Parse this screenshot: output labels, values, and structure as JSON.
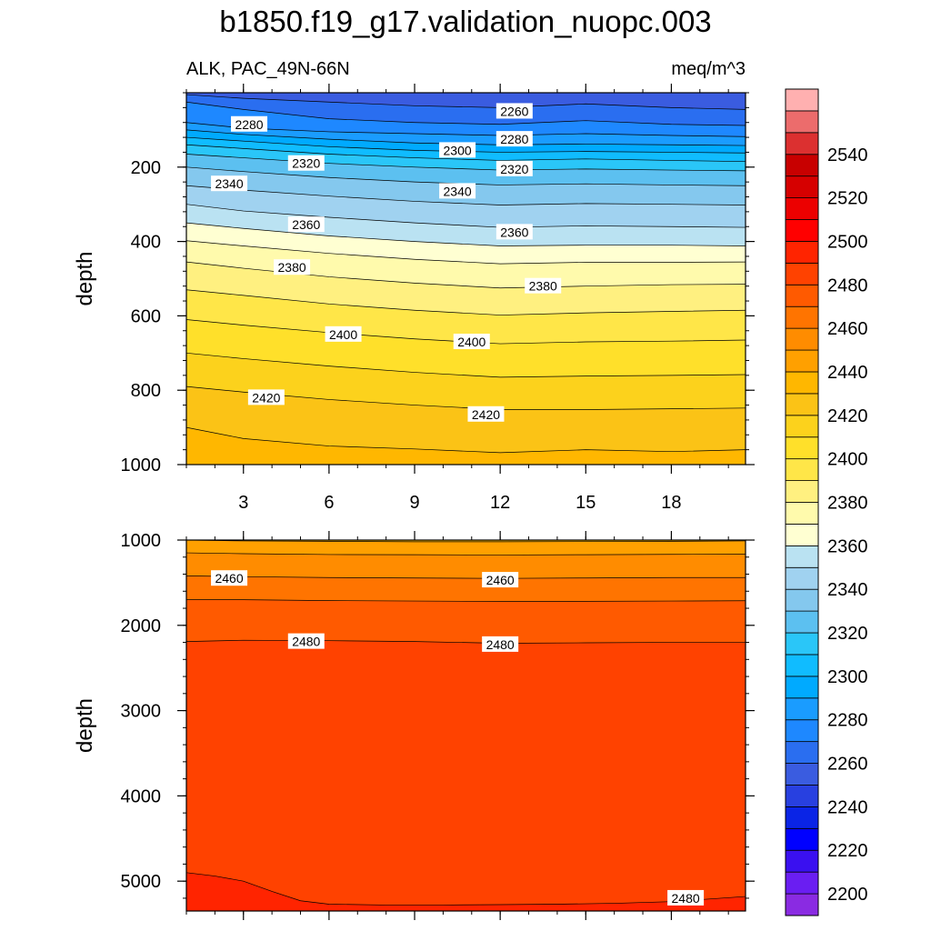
{
  "title": "b1850.f19_g17.validation_nuopc.003",
  "chart_data": {
    "type": "contour",
    "variable": "ALK, PAC_49N-66N",
    "units": "meq/m^3",
    "x": {
      "label": "",
      "range": [
        1,
        20.6
      ],
      "ticks": [
        3,
        6,
        9,
        12,
        15,
        18
      ]
    },
    "panels": [
      {
        "name": "upper",
        "ylabel": "depth",
        "yrange": [
          0,
          1000
        ],
        "yticks": [
          200,
          400,
          600,
          800,
          1000
        ],
        "xtick_labels_shown": true,
        "boundaries": [
          {
            "level": 2260,
            "x": [
              1,
              3,
              6,
              9,
              12,
              15,
              18,
              20.6
            ],
            "y": [
              5,
              15,
              25,
              35,
              40,
              30,
              40,
              45
            ]
          },
          {
            "level": 2270,
            "x": [
              1,
              3,
              6,
              9,
              12,
              15,
              18,
              20.6
            ],
            "y": [
              25,
              45,
              70,
              80,
              85,
              75,
              85,
              88
            ]
          },
          {
            "level": 2280,
            "x": [
              1,
              3,
              6,
              9,
              12,
              15,
              18,
              20.6
            ],
            "y": [
              80,
              95,
              105,
              110,
              115,
              110,
              115,
              118
            ]
          },
          {
            "level": 2290,
            "x": [
              1,
              3,
              6,
              9,
              12,
              15,
              18,
              20.6
            ],
            "y": [
              100,
              112,
              125,
              135,
              140,
              138,
              140,
              142
            ]
          },
          {
            "level": 2300,
            "x": [
              1,
              3,
              6,
              9,
              12,
              15,
              18,
              20.6
            ],
            "y": [
              120,
              130,
              145,
              155,
              160,
              158,
              160,
              162
            ]
          },
          {
            "level": 2310,
            "x": [
              1,
              3,
              6,
              9,
              12,
              15,
              18,
              20.6
            ],
            "y": [
              140,
              150,
              165,
              175,
              182,
              178,
              182,
              185
            ]
          },
          {
            "level": 2320,
            "x": [
              1,
              3,
              6,
              9,
              12,
              15,
              18,
              20.6
            ],
            "y": [
              165,
              175,
              190,
              200,
              208,
              205,
              208,
              210
            ]
          },
          {
            "level": 2330,
            "x": [
              1,
              3,
              6,
              9,
              12,
              15,
              18,
              20.6
            ],
            "y": [
              200,
              212,
              228,
              240,
              248,
              245,
              248,
              250
            ]
          },
          {
            "level": 2340,
            "x": [
              1,
              3,
              6,
              9,
              12,
              15,
              18,
              20.6
            ],
            "y": [
              250,
              262,
              278,
              292,
              302,
              298,
              300,
              302
            ]
          },
          {
            "level": 2350,
            "x": [
              1,
              3,
              6,
              9,
              12,
              15,
              18,
              20.6
            ],
            "y": [
              300,
              318,
              335,
              350,
              362,
              358,
              360,
              362
            ]
          },
          {
            "level": 2360,
            "x": [
              1,
              3,
              6,
              9,
              12,
              15,
              18,
              20.6
            ],
            "y": [
              350,
              365,
              385,
              400,
              412,
              410,
              410,
              412
            ]
          },
          {
            "level": 2370,
            "x": [
              1,
              3,
              6,
              9,
              12,
              15,
              18,
              20.6
            ],
            "y": [
              398,
              412,
              432,
              448,
              460,
              456,
              456,
              455
            ]
          },
          {
            "level": 2380,
            "x": [
              1,
              3,
              6,
              9,
              12,
              15,
              18,
              20.6
            ],
            "y": [
              455,
              472,
              495,
              512,
              525,
              520,
              516,
              515
            ]
          },
          {
            "level": 2390,
            "x": [
              1,
              3,
              6,
              9,
              12,
              15,
              18,
              20.6
            ],
            "y": [
              530,
              545,
              568,
              585,
              598,
              592,
              588,
              585
            ]
          },
          {
            "level": 2400,
            "x": [
              1,
              3,
              6,
              9,
              12,
              15,
              18,
              20.6
            ],
            "y": [
              610,
              625,
              645,
              662,
              675,
              670,
              668,
              665
            ]
          },
          {
            "level": 2410,
            "x": [
              1,
              3,
              6,
              9,
              12,
              15,
              18,
              20.6
            ],
            "y": [
              700,
              715,
              735,
              752,
              765,
              762,
              760,
              758
            ]
          },
          {
            "level": 2420,
            "x": [
              1,
              3,
              6,
              9,
              12,
              15,
              18,
              20.6
            ],
            "y": [
              790,
              805,
              825,
              840,
              852,
              852,
              850,
              848
            ]
          },
          {
            "level": 2430,
            "x": [
              1,
              3,
              6,
              9,
              12,
              15,
              18,
              20.6
            ],
            "y": [
              900,
              930,
              950,
              958,
              968,
              960,
              965,
              960
            ]
          }
        ],
        "line_labels": [
          {
            "text": "2260",
            "x": 12.5,
            "y": 50
          },
          {
            "text": "2280",
            "x": 3.2,
            "y": 85
          },
          {
            "text": "2280",
            "x": 12.5,
            "y": 125
          },
          {
            "text": "2300",
            "x": 10.5,
            "y": 155
          },
          {
            "text": "2320",
            "x": 5.2,
            "y": 190
          },
          {
            "text": "2320",
            "x": 12.5,
            "y": 205
          },
          {
            "text": "2340",
            "x": 2.5,
            "y": 245
          },
          {
            "text": "2340",
            "x": 10.5,
            "y": 265
          },
          {
            "text": "2360",
            "x": 5.2,
            "y": 355
          },
          {
            "text": "2360",
            "x": 12.5,
            "y": 375
          },
          {
            "text": "2380",
            "x": 4.7,
            "y": 470
          },
          {
            "text": "2380",
            "x": 13.5,
            "y": 520
          },
          {
            "text": "2400",
            "x": 6.5,
            "y": 650
          },
          {
            "text": "2400",
            "x": 11,
            "y": 670
          },
          {
            "text": "2420",
            "x": 3.8,
            "y": 820
          },
          {
            "text": "2420",
            "x": 11.5,
            "y": 865
          }
        ]
      },
      {
        "name": "lower",
        "ylabel": "depth",
        "yrange": [
          1000,
          5350
        ],
        "yticks": [
          1000,
          2000,
          3000,
          4000,
          5000
        ],
        "xtick_labels_shown": false,
        "boundaries": [
          {
            "level": 2440,
            "x": [
              1,
              3,
              6,
              9,
              12,
              15,
              18,
              20.6
            ],
            "y": [
              1000,
              1010,
              1015,
              1020,
              1020,
              1018,
              1015,
              1010
            ]
          },
          {
            "level": 2450,
            "x": [
              1,
              3,
              6,
              9,
              12,
              15,
              18,
              20.6
            ],
            "y": [
              1150,
              1160,
              1170,
              1172,
              1175,
              1172,
              1168,
              1165
            ]
          },
          {
            "level": 2460,
            "x": [
              1,
              3,
              6,
              9,
              12,
              15,
              18,
              20.6
            ],
            "y": [
              1420,
              1430,
              1440,
              1445,
              1450,
              1445,
              1440,
              1440
            ]
          },
          {
            "level": 2470,
            "x": [
              1,
              3,
              6,
              9,
              12,
              15,
              18,
              20.6
            ],
            "y": [
              1700,
              1700,
              1710,
              1715,
              1720,
              1718,
              1715,
              1712
            ]
          },
          {
            "level": 2480,
            "x": [
              1,
              3,
              6,
              9,
              12,
              15,
              18,
              20.6
            ],
            "y": [
              2190,
              2175,
              2180,
              2190,
              2210,
              2205,
              2200,
              2200
            ]
          },
          {
            "level": 2490,
            "x": [
              1,
              2,
              3,
              4,
              5,
              6,
              8,
              10,
              12,
              14,
              16,
              18,
              20.6
            ],
            "y": [
              4900,
              4940,
              5000,
              5120,
              5230,
              5270,
              5280,
              5280,
              5275,
              5270,
              5260,
              5240,
              5180
            ]
          }
        ],
        "line_labels": [
          {
            "text": "2460",
            "x": 2.5,
            "y": 1450
          },
          {
            "text": "2460",
            "x": 12,
            "y": 1470
          },
          {
            "text": "2480",
            "x": 5.2,
            "y": 2190
          },
          {
            "text": "2480",
            "x": 12,
            "y": 2225
          },
          {
            "text": "2480",
            "x": 18.5,
            "y": 5200
          }
        ]
      }
    ],
    "colorbar": {
      "orientation": "vertical",
      "levels": [
        2200,
        2210,
        2220,
        2230,
        2240,
        2250,
        2260,
        2270,
        2280,
        2290,
        2300,
        2310,
        2320,
        2330,
        2340,
        2350,
        2360,
        2370,
        2380,
        2390,
        2400,
        2410,
        2420,
        2430,
        2440,
        2450,
        2460,
        2470,
        2480,
        2490,
        2500,
        2510,
        2520,
        2530,
        2540,
        2550
      ],
      "colors": [
        "#8a2be2",
        "#6a1ef2",
        "#3a10f0",
        "#0000ff",
        "#0a24e6",
        "#2840e0",
        "#3a5ce0",
        "#2a6ef0",
        "#1e88ff",
        "#1a9cff",
        "#00aaff",
        "#10bcff",
        "#2ac6f8",
        "#5cc0f0",
        "#84c8ee",
        "#a0d2f0",
        "#bae2f2",
        "#ffffd2",
        "#fffaac",
        "#fff080",
        "#ffe648",
        "#ffe02a",
        "#fcd21c",
        "#fbc316",
        "#ffb700",
        "#ffa000",
        "#ff8c00",
        "#ff7400",
        "#ff5a00",
        "#ff4200",
        "#ff2400",
        "#ff0000",
        "#ec0000",
        "#d60000",
        "#c80000",
        "#dc3030",
        "#ec6c6c",
        "#ffb0b0"
      ],
      "tick_labels": [
        "2200",
        "2220",
        "2240",
        "2260",
        "2280",
        "2300",
        "2320",
        "2340",
        "2360",
        "2380",
        "2400",
        "2420",
        "2440",
        "2460",
        "2480",
        "2500",
        "2520",
        "2540"
      ]
    }
  }
}
